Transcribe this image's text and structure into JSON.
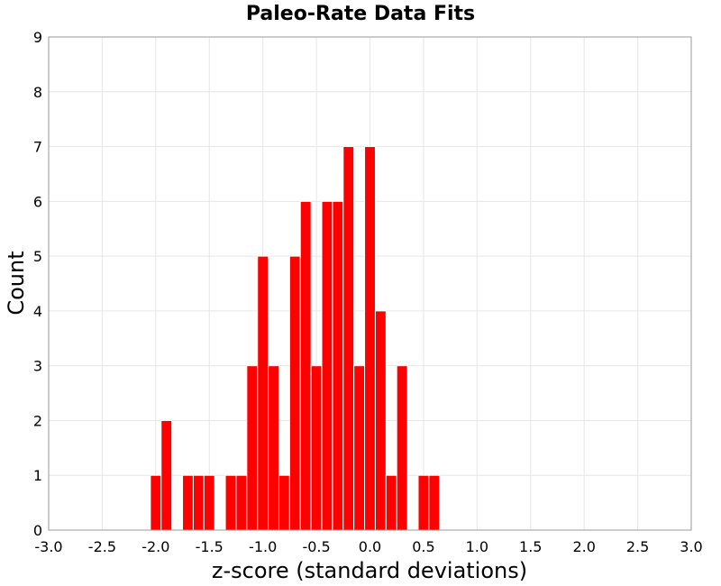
{
  "chart_data": {
    "type": "bar",
    "title": "Paleo-Rate Data Fits",
    "xlabel": "z-score (standard deviations)",
    "ylabel": "Count",
    "xlim": [
      -3.0,
      3.0
    ],
    "ylim": [
      0,
      9
    ],
    "bin_width": 0.1,
    "grid": true,
    "bar_color": "#ff0000",
    "x_ticks": [
      "-3.0",
      "-2.5",
      "-2.0",
      "-1.5",
      "-1.0",
      "-0.5",
      "0.0",
      "0.5",
      "1.0",
      "1.5",
      "2.0",
      "2.5",
      "3.0"
    ],
    "y_ticks": [
      "0",
      "1",
      "2",
      "3",
      "4",
      "5",
      "6",
      "7",
      "8",
      "9"
    ],
    "bins": [
      {
        "x": -2.0,
        "y": 1
      },
      {
        "x": -1.9,
        "y": 2
      },
      {
        "x": -1.7,
        "y": 1
      },
      {
        "x": -1.6,
        "y": 1
      },
      {
        "x": -1.5,
        "y": 1
      },
      {
        "x": -1.3,
        "y": 1
      },
      {
        "x": -1.2,
        "y": 1
      },
      {
        "x": -1.1,
        "y": 3
      },
      {
        "x": -1.0,
        "y": 5
      },
      {
        "x": -0.9,
        "y": 3
      },
      {
        "x": -0.8,
        "y": 1
      },
      {
        "x": -0.7,
        "y": 5
      },
      {
        "x": -0.6,
        "y": 6
      },
      {
        "x": -0.5,
        "y": 3
      },
      {
        "x": -0.4,
        "y": 6
      },
      {
        "x": -0.3,
        "y": 6
      },
      {
        "x": -0.2,
        "y": 7
      },
      {
        "x": -0.1,
        "y": 3
      },
      {
        "x": 0.0,
        "y": 7
      },
      {
        "x": 0.1,
        "y": 4
      },
      {
        "x": 0.2,
        "y": 1
      },
      {
        "x": 0.3,
        "y": 3
      },
      {
        "x": 0.5,
        "y": 1
      },
      {
        "x": 0.6,
        "y": 1
      }
    ]
  }
}
